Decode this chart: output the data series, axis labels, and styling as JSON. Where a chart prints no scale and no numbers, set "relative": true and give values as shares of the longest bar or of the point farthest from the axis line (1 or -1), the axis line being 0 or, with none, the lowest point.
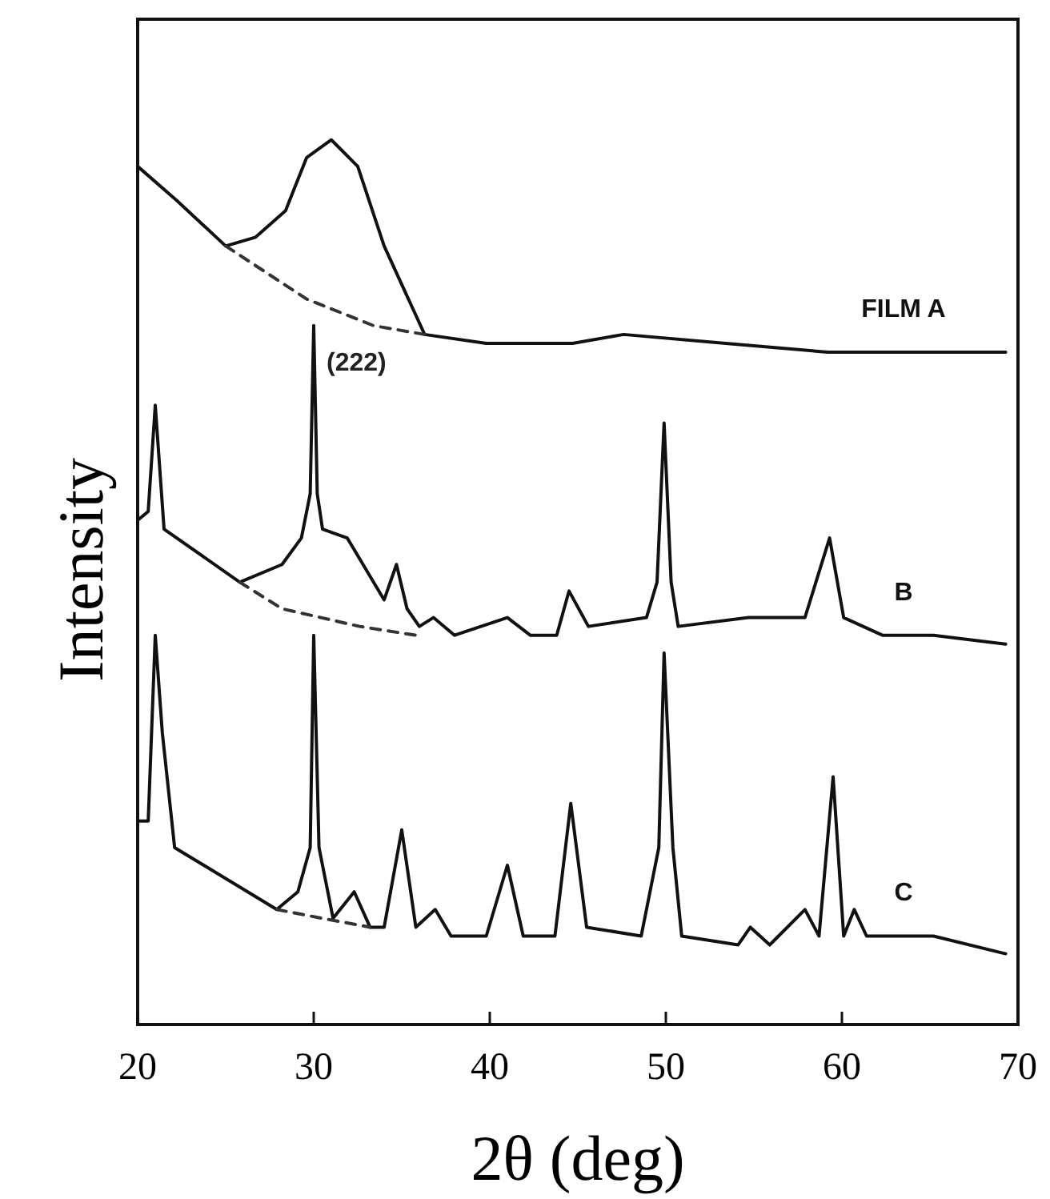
{
  "chart_data": {
    "type": "line",
    "relative": true,
    "xlabel": "2θ (deg)",
    "ylabel": "Intensity",
    "xlim": [
      20,
      70
    ],
    "xticks": [
      20,
      30,
      40,
      50,
      60,
      70
    ],
    "legend": false,
    "grid": false,
    "marker": "none",
    "line_style": "solid",
    "annotations": [
      {
        "text": "(222)",
        "x": 30,
        "y": 0.79
      }
    ],
    "series": [
      {
        "name": "FILM A",
        "color": "#111111",
        "x": [
          20.0,
          22.3,
          25.0,
          26.7,
          28.4,
          29.6,
          31.0,
          32.5,
          34.0,
          36.3,
          39.8,
          44.7,
          47.6,
          53.4,
          59.2,
          64.9,
          67.9,
          69.3
        ],
        "values": [
          0.97,
          0.93,
          0.88,
          0.89,
          0.92,
          0.98,
          1.0,
          0.97,
          0.88,
          0.78,
          0.77,
          0.77,
          0.78,
          0.77,
          0.76,
          0.76,
          0.76,
          0.76
        ]
      },
      {
        "color": "#333333",
        "line_style": "dashed",
        "x": [
          25.0,
          29.6,
          33.4,
          36.3
        ],
        "values": [
          0.88,
          0.82,
          0.79,
          0.78
        ]
      },
      {
        "name": "B",
        "color": "#111111",
        "x": [
          20.0,
          20.6,
          21.0,
          21.5,
          25.8,
          28.2,
          29.3,
          29.8,
          30.0,
          30.2,
          30.5,
          31.9,
          34.0,
          34.7,
          35.3,
          36.0,
          36.8,
          38.0,
          41.0,
          42.3,
          43.8,
          44.5,
          45.6,
          48.9,
          49.5,
          49.9,
          50.3,
          50.7,
          54.7,
          57.9,
          59.3,
          60.1,
          62.3,
          65.2,
          69.3
        ],
        "values": [
          0.57,
          0.58,
          0.7,
          0.56,
          0.5,
          0.52,
          0.55,
          0.6,
          0.79,
          0.6,
          0.56,
          0.55,
          0.48,
          0.52,
          0.47,
          0.45,
          0.46,
          0.44,
          0.46,
          0.44,
          0.44,
          0.49,
          0.45,
          0.46,
          0.5,
          0.68,
          0.5,
          0.45,
          0.46,
          0.46,
          0.55,
          0.46,
          0.44,
          0.44,
          0.43
        ]
      },
      {
        "color": "#333333",
        "line_style": "dashed",
        "x": [
          25.8,
          28.2,
          32.6,
          35.8
        ],
        "values": [
          0.5,
          0.47,
          0.45,
          0.44
        ]
      },
      {
        "name": "C",
        "color": "#111111",
        "x": [
          20.1,
          20.6,
          21.0,
          21.4,
          22.1,
          27.9,
          29.1,
          29.8,
          30.0,
          30.3,
          31.1,
          32.3,
          33.2,
          34.0,
          35.0,
          35.8,
          36.9,
          37.8,
          39.8,
          41.0,
          41.9,
          43.7,
          44.6,
          45.5,
          48.6,
          49.6,
          49.9,
          50.4,
          50.9,
          54.1,
          54.8,
          55.9,
          57.9,
          58.7,
          59.5,
          60.1,
          60.7,
          61.4,
          65.2,
          69.3
        ],
        "values": [
          0.23,
          0.23,
          0.44,
          0.33,
          0.2,
          0.13,
          0.15,
          0.2,
          0.44,
          0.2,
          0.12,
          0.15,
          0.11,
          0.11,
          0.22,
          0.11,
          0.13,
          0.1,
          0.1,
          0.18,
          0.1,
          0.1,
          0.25,
          0.11,
          0.1,
          0.2,
          0.42,
          0.2,
          0.1,
          0.09,
          0.11,
          0.09,
          0.13,
          0.1,
          0.28,
          0.1,
          0.13,
          0.1,
          0.1,
          0.08
        ]
      },
      {
        "color": "#333333",
        "line_style": "dashed",
        "x": [
          27.9,
          30.5,
          33.2
        ],
        "values": [
          0.13,
          0.12,
          0.11
        ]
      }
    ]
  }
}
